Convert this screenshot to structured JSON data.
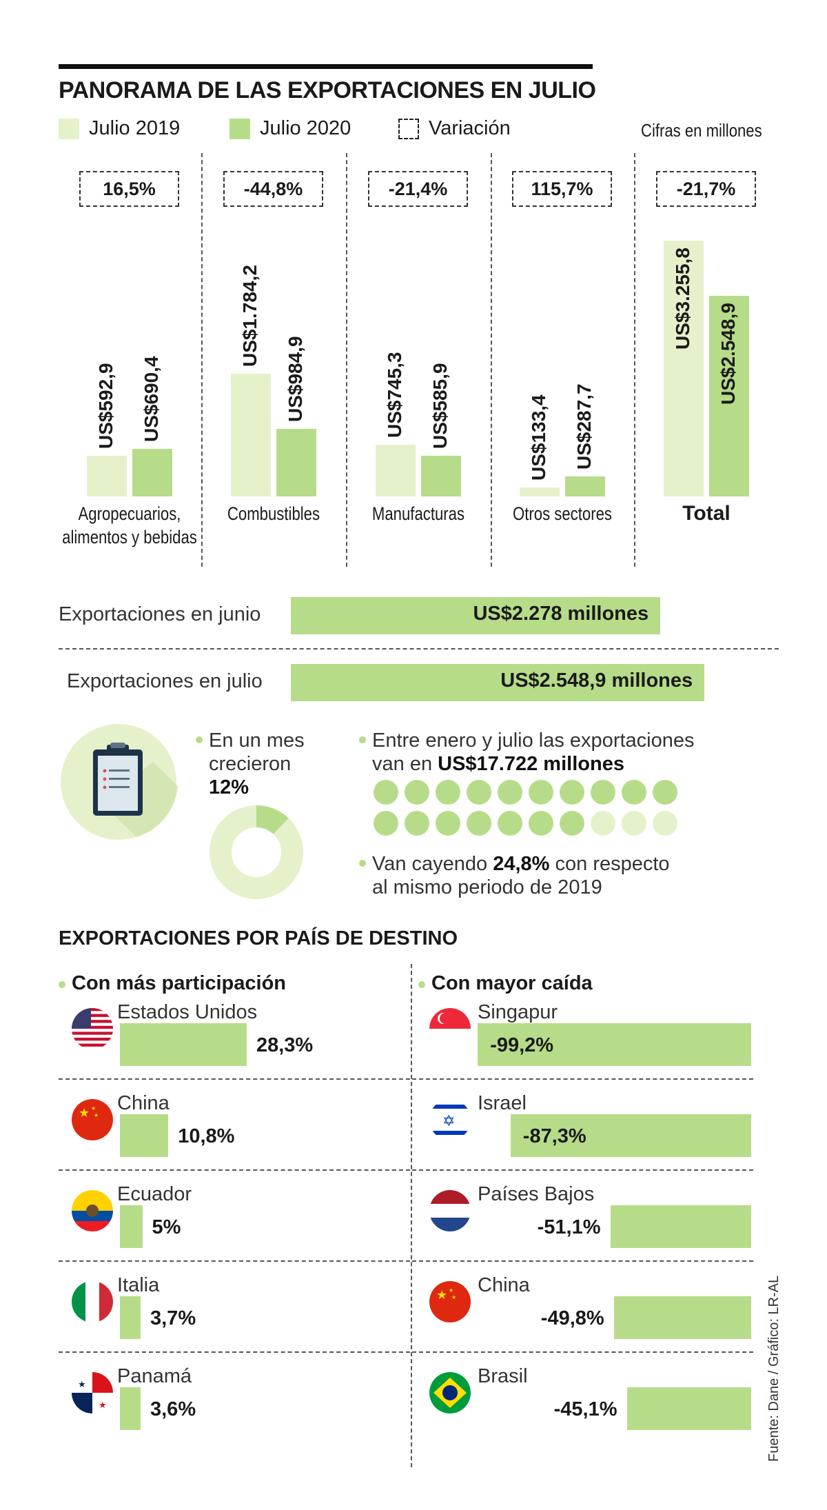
{
  "header": {
    "title": "PANORAMA DE LAS EXPORTACIONES EN JULIO",
    "legend": {
      "y2019": "Julio 2019",
      "y2020": "Julio 2020",
      "variation": "Variación"
    },
    "units": "Cifras en millones"
  },
  "colors": {
    "light": "#e5f1cb",
    "green": "#b7dc89",
    "text": "#1a1a1a"
  },
  "chart_data": [
    {
      "type": "bar",
      "categories": [
        "Agropecuarios, alimentos y bebidas",
        "Combustibles",
        "Manufacturas",
        "Otros sectores",
        "Total"
      ],
      "series": [
        {
          "name": "Julio 2019",
          "values": [
            592.9,
            1784.2,
            745.3,
            133.4,
            3255.8
          ]
        },
        {
          "name": "Julio 2020",
          "values": [
            690.4,
            984.9,
            585.9,
            287.7,
            2548.9
          ]
        }
      ],
      "labels_2019": [
        "US$592,9",
        "US$1.784,2",
        "US$745,3",
        "US$133,4",
        "US$3.255,8"
      ],
      "labels_2020": [
        "US$690,4",
        "US$984,9",
        "US$585,9",
        "US$287,7",
        "US$2.548,9"
      ],
      "variation": [
        "16,5%",
        "-44,8%",
        "-21,4%",
        "115,7%",
        "-21,7%"
      ],
      "category_lines": [
        [
          "Agropecuarios,",
          "alimentos y bebidas"
        ],
        [
          "Combustibles"
        ],
        [
          "Manufacturas"
        ],
        [
          "Otros sectores"
        ],
        [
          "Total"
        ]
      ]
    },
    {
      "type": "bar",
      "orientation": "horizontal",
      "categories": [
        "Exportaciones en junio",
        "Exportaciones en julio"
      ],
      "values": [
        2278,
        2548.9
      ],
      "labels": [
        "US$2.278 millones",
        "US$2.548,9 millones"
      ]
    },
    {
      "type": "bar",
      "orientation": "horizontal",
      "title": "Con más participación",
      "categories": [
        "Estados Unidos",
        "China",
        "Ecuador",
        "Italia",
        "Panamá"
      ],
      "values": [
        28.3,
        10.8,
        5,
        3.7,
        3.6
      ],
      "labels": [
        "28,3%",
        "10,8%",
        "5%",
        "3,7%",
        "3,6%"
      ]
    },
    {
      "type": "bar",
      "orientation": "horizontal",
      "title": "Con mayor caída",
      "categories": [
        "Singapur",
        "Israel",
        "Países Bajos",
        "China",
        "Brasil"
      ],
      "values": [
        -99.2,
        -87.3,
        -51.1,
        -49.8,
        -45.1
      ],
      "labels": [
        "-99,2%",
        "-87,3%",
        "-51,1%",
        "-49,8%",
        "-45,1%"
      ]
    }
  ],
  "growth": {
    "line1": "En un mes",
    "line2": "crecieron",
    "value": "12%",
    "fraction": 0.12
  },
  "cumulative": {
    "line1": "Entre enero y julio las exportaciones",
    "line2_prefix": "van en ",
    "line2_bold": "US$17.722 millones",
    "dots_filled": 17,
    "dots_total": 20,
    "fall_prefix": "Van cayendo ",
    "fall_bold": "24,8%",
    "fall_suffix": " con respecto",
    "fall_line2": "al mismo periodo de 2019"
  },
  "destination": {
    "title": "EXPORTACIONES POR PAÍS DE DESTINO",
    "left_title": "Con más participación",
    "right_title": "Con mayor caída"
  },
  "source": "Fuente: Dane / Gráfico: LR-AL"
}
